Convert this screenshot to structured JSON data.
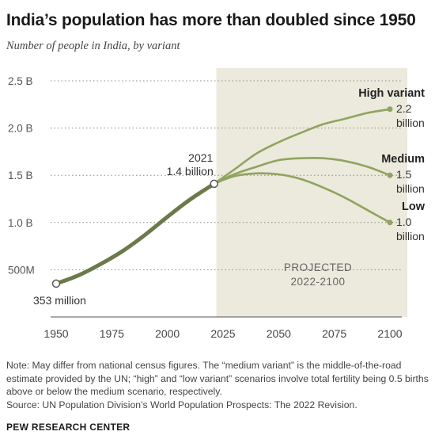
{
  "title": "India’s population has more than doubled since 1950",
  "subtitle": "Number of people in India, by variant",
  "note": "Note: May differ from national census figures. The “medium variant” is the middle-of-the-road estimate provided by the UN; “high” and “low variant” scenarios involve total fertility being 0.5 births above or below the medium scenario, respectively.",
  "source": "Source: UN Population Division’s World Population Prospects: The 2022 Revision.",
  "brand": "PEW RESEARCH CENTER",
  "colors": {
    "historical": "#6b7a4a",
    "projection": "#8fa45e",
    "projected_area": "#ece9dd",
    "grid": "#8a8a8a",
    "text": "#333333"
  },
  "chart_data": {
    "type": "line",
    "xlim": [
      1950,
      2100
    ],
    "ylim": [
      0,
      2.5
    ],
    "x_ticks": [
      1950,
      1975,
      2000,
      2025,
      2050,
      2075,
      2100
    ],
    "y_ticks": [
      {
        "value": 0.5,
        "label": "500M"
      },
      {
        "value": 1.0,
        "label": "1.0 B"
      },
      {
        "value": 1.5,
        "label": "1.5 B"
      },
      {
        "value": 2.0,
        "label": "2.0 B"
      },
      {
        "value": 2.5,
        "label": "2.5 B"
      }
    ],
    "grid": "horizontal dotted",
    "shaded_region": {
      "from": 2022,
      "to": 2100,
      "label": "PROJECTED 2022-2100"
    },
    "series": [
      {
        "name": "",
        "kind": "historical",
        "x": [
          1950,
          1960,
          1970,
          1980,
          1990,
          2000,
          2010,
          2021
        ],
        "y": [
          0.353,
          0.44,
          0.56,
          0.7,
          0.87,
          1.06,
          1.24,
          1.41
        ]
      },
      {
        "name": "High variant",
        "kind": "projection",
        "x": [
          2021,
          2030,
          2040,
          2050,
          2060,
          2070,
          2080,
          2090,
          2100
        ],
        "y": [
          1.41,
          1.56,
          1.73,
          1.85,
          1.95,
          2.04,
          2.1,
          2.16,
          2.2
        ]
      },
      {
        "name": "Medium",
        "kind": "projection",
        "x": [
          2021,
          2030,
          2040,
          2050,
          2060,
          2070,
          2080,
          2090,
          2100
        ],
        "y": [
          1.41,
          1.51,
          1.59,
          1.66,
          1.68,
          1.68,
          1.65,
          1.59,
          1.5
        ]
      },
      {
        "name": "Low",
        "kind": "projection",
        "x": [
          2021,
          2030,
          2040,
          2050,
          2060,
          2070,
          2080,
          2090,
          2100
        ],
        "y": [
          1.41,
          1.49,
          1.52,
          1.51,
          1.46,
          1.37,
          1.26,
          1.13,
          1.0
        ]
      }
    ],
    "end_labels": [
      {
        "series": "High variant",
        "line1": "2.2",
        "line2": "billion"
      },
      {
        "series": "Medium",
        "line1": "1.5",
        "line2": "billion"
      },
      {
        "series": "Low",
        "line1": "1.0",
        "line2": "billion"
      }
    ],
    "annotations": [
      {
        "x": 1950,
        "y": 0.353,
        "text": "353 million"
      },
      {
        "x": 2021,
        "y": 1.41,
        "line1": "2021",
        "line2": "1.4 billion"
      }
    ]
  }
}
